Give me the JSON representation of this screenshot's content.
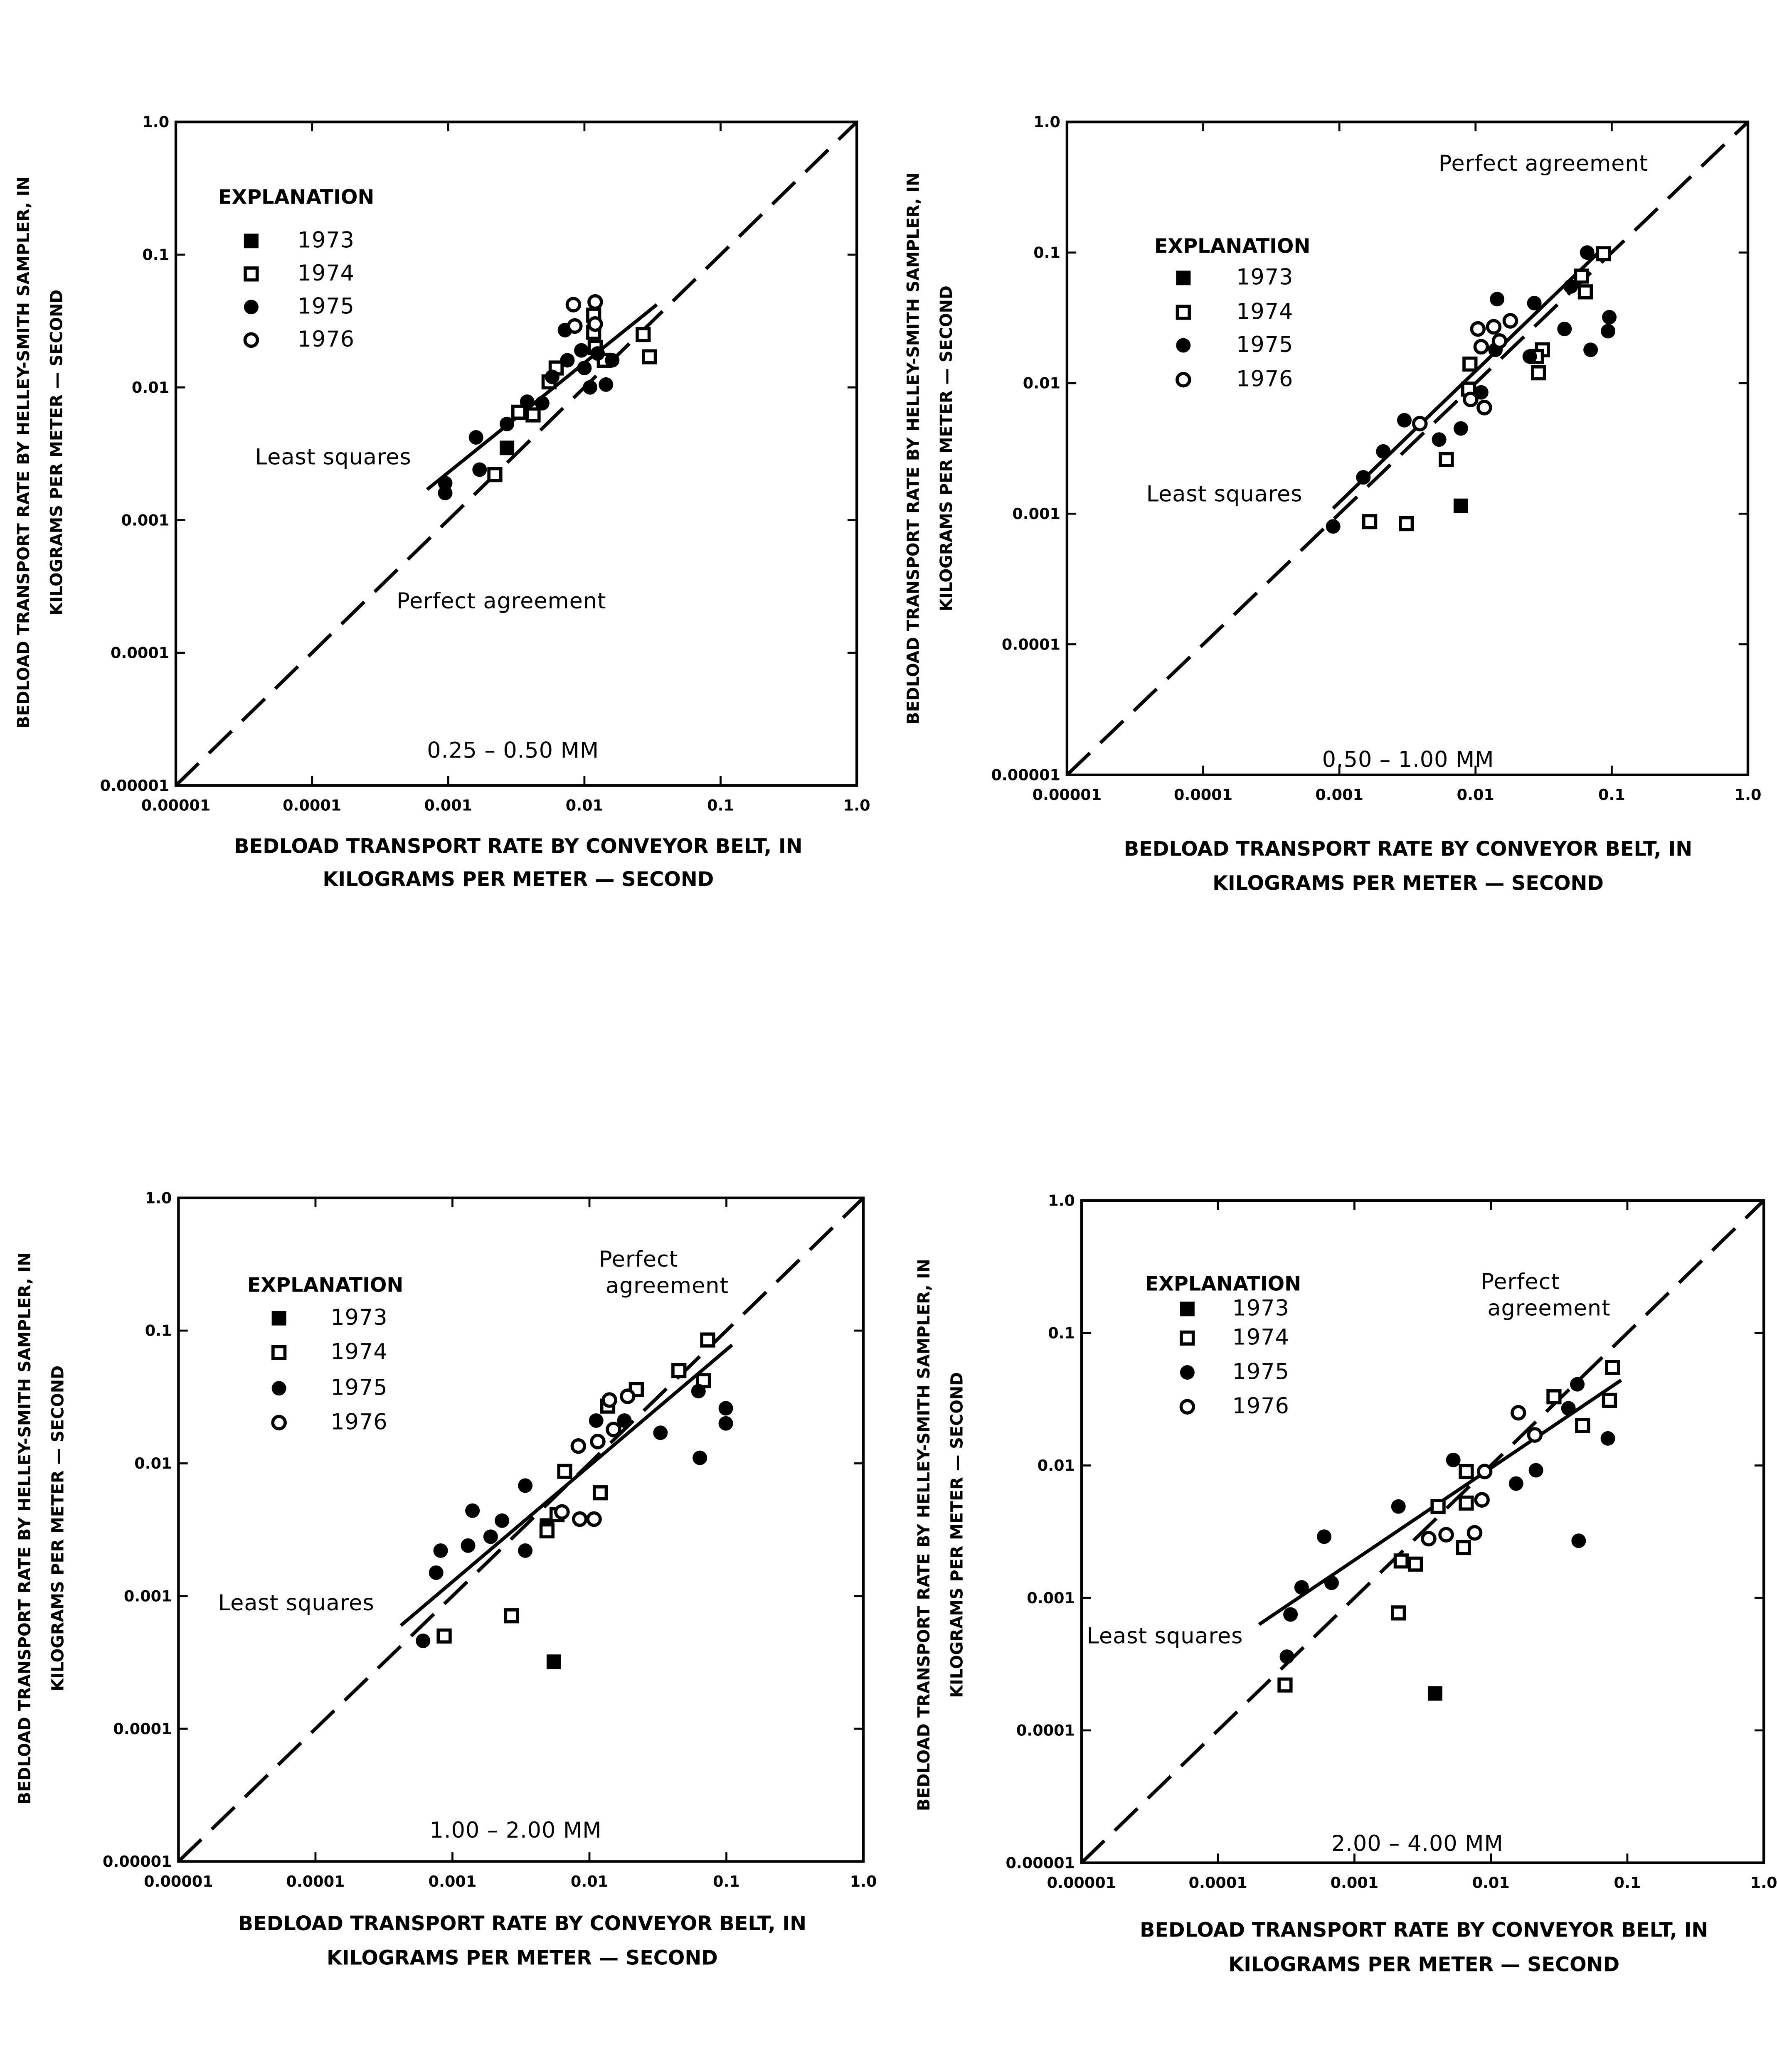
{
  "chart_data": [
    {
      "type": "scatter",
      "panel_label": "0.25 – 0.50 MM",
      "xlabel": [
        "BEDLOAD TRANSPORT RATE BY CONVEYOR BELT, IN",
        "KILOGRAMS PER METER — SECOND"
      ],
      "ylabel": [
        "BEDLOAD TRANSPORT RATE BY HELLEY-SMITH SAMPLER, IN",
        "KILOGRAMS PER METER — SECOND"
      ],
      "xscale": "log",
      "yscale": "log",
      "xlim": [
        1e-05,
        1.0
      ],
      "ylim": [
        1e-05,
        1.0
      ],
      "xticks": [
        "0.00001",
        "0.0001",
        "0.001",
        "0.01",
        "0.1",
        "1.0"
      ],
      "yticks": [
        "0.00001",
        "0.0001",
        "0.001",
        "0.01",
        "0.1",
        "1.0"
      ],
      "legend": {
        "title": "EXPLANATION",
        "placement": "top-left"
      },
      "series": [
        {
          "name": "1973",
          "marker": "filled-square",
          "points": [
            [
              0.0027,
              0.0035
            ]
          ]
        },
        {
          "name": "1974",
          "marker": "open-square",
          "points": [
            [
              0.0022,
              0.0022
            ],
            [
              0.0033,
              0.0065
            ],
            [
              0.0042,
              0.0062
            ],
            [
              0.0055,
              0.011
            ],
            [
              0.0062,
              0.014
            ],
            [
              0.0117,
              0.035
            ],
            [
              0.0117,
              0.026
            ],
            [
              0.012,
              0.02
            ],
            [
              0.027,
              0.025
            ],
            [
              0.03,
              0.017
            ],
            [
              0.014,
              0.016
            ]
          ]
        },
        {
          "name": "1975",
          "marker": "filled-circle",
          "points": [
            [
              0.00095,
              0.0016
            ],
            [
              0.00095,
              0.0019
            ],
            [
              0.0016,
              0.0042
            ],
            [
              0.0017,
              0.0024
            ],
            [
              0.0027,
              0.0053
            ],
            [
              0.0038,
              0.0078
            ],
            [
              0.0049,
              0.0076
            ],
            [
              0.0058,
              0.012
            ],
            [
              0.0072,
              0.027
            ],
            [
              0.0075,
              0.016
            ],
            [
              0.0095,
              0.019
            ],
            [
              0.01,
              0.014
            ],
            [
              0.011,
              0.01
            ],
            [
              0.0125,
              0.018
            ],
            [
              0.0144,
              0.0105
            ],
            [
              0.016,
              0.016
            ]
          ]
        },
        {
          "name": "1976",
          "marker": "open-circle",
          "points": [
            [
              0.0083,
              0.042
            ],
            [
              0.012,
              0.044
            ],
            [
              0.0085,
              0.029
            ],
            [
              0.012,
              0.03
            ]
          ]
        }
      ],
      "least_squares": {
        "label": "Least squares",
        "from": [
          0.0007,
          0.0017
        ],
        "to": [
          0.034,
          0.042
        ]
      },
      "perfect_agreement": {
        "label": [
          "Perfect agreement"
        ],
        "from": [
          1e-05,
          1e-05
        ],
        "to": [
          1.0,
          1.0
        ]
      }
    },
    {
      "type": "scatter",
      "panel_label": "0.50 – 1.00 MM",
      "xlabel": [
        "BEDLOAD TRANSPORT RATE BY CONVEYOR BELT, IN",
        "KILOGRAMS PER METER — SECOND"
      ],
      "ylabel": [
        "BEDLOAD TRANSPORT RATE BY HELLEY-SMITH SAMPLER, IN",
        "KILOGRAMS PER METER — SECOND"
      ],
      "xscale": "log",
      "yscale": "log",
      "xlim": [
        1e-05,
        1.0
      ],
      "ylim": [
        1e-05,
        1.0
      ],
      "xticks": [
        "0.00001",
        "0.0001",
        "0.001",
        "0.01",
        "0.1",
        "1.0"
      ],
      "yticks": [
        "0.00001",
        "0.0001",
        "0.001",
        "0.01",
        "0.1",
        "1.0"
      ],
      "legend": {
        "title": "EXPLANATION",
        "placement": "top-left"
      },
      "series": [
        {
          "name": "1973",
          "marker": "filled-square",
          "points": [
            [
              0.0078,
              0.00115
            ]
          ]
        },
        {
          "name": "1974",
          "marker": "open-square",
          "points": [
            [
              0.00167,
              0.00087
            ],
            [
              0.0031,
              0.00084
            ],
            [
              0.0061,
              0.0026
            ],
            [
              0.0091,
              0.014
            ],
            [
              0.0089,
              0.009
            ],
            [
              0.029,
              0.012
            ],
            [
              0.031,
              0.018
            ],
            [
              0.064,
              0.05
            ],
            [
              0.087,
              0.098
            ],
            [
              0.06,
              0.066
            ],
            [
              0.028,
              0.016
            ]
          ]
        },
        {
          "name": "1975",
          "marker": "filled-circle",
          "points": [
            [
              0.0009,
              0.0008
            ],
            [
              0.0015,
              0.0019
            ],
            [
              0.0021,
              0.003
            ],
            [
              0.003,
              0.0052
            ],
            [
              0.0054,
              0.0037
            ],
            [
              0.0078,
              0.0045
            ],
            [
              0.0144,
              0.044
            ],
            [
              0.027,
              0.041
            ],
            [
              0.045,
              0.026
            ],
            [
              0.07,
              0.018
            ],
            [
              0.096,
              0.032
            ],
            [
              0.066,
              0.1
            ],
            [
              0.094,
              0.025
            ],
            [
              0.014,
              0.018
            ],
            [
              0.011,
              0.0085
            ],
            [
              0.05,
              0.055
            ],
            [
              0.025,
              0.016
            ]
          ]
        },
        {
          "name": "1976",
          "marker": "open-circle",
          "points": [
            [
              0.0039,
              0.0049
            ],
            [
              0.0092,
              0.0075
            ],
            [
              0.0116,
              0.0065
            ],
            [
              0.0104,
              0.026
            ],
            [
              0.0136,
              0.027
            ],
            [
              0.018,
              0.03
            ],
            [
              0.011,
              0.019
            ],
            [
              0.015,
              0.021
            ]
          ]
        }
      ],
      "least_squares": {
        "label": "Least squares",
        "from": [
          0.0009,
          0.0011
        ],
        "to": [
          0.08,
          0.1
        ]
      },
      "perfect_agreement": {
        "label": [
          "Perfect agreement"
        ],
        "from": [
          1e-05,
          1e-05
        ],
        "to": [
          1.0,
          1.0
        ]
      }
    },
    {
      "type": "scatter",
      "panel_label": "1.00 – 2.00 MM",
      "xlabel": [
        "BEDLOAD TRANSPORT RATE BY CONVEYOR BELT, IN",
        "KILOGRAMS PER METER — SECOND"
      ],
      "ylabel": [
        "BEDLOAD TRANSPORT RATE BY HELLEY-SMITH SAMPLER, IN",
        "KILOGRAMS PER METER — SECOND"
      ],
      "xscale": "log",
      "yscale": "log",
      "xlim": [
        1e-05,
        1.0
      ],
      "ylim": [
        1e-05,
        1.0
      ],
      "xticks": [
        "0.00001",
        "0.0001",
        "0.001",
        "0.01",
        "0.1",
        "1.0"
      ],
      "yticks": [
        "0.00001",
        "0.0001",
        "0.001",
        "0.01",
        "0.1",
        "1.0"
      ],
      "legend": {
        "title": "EXPLANATION",
        "placement": "top-left"
      },
      "series": [
        {
          "name": "1973",
          "marker": "filled-square",
          "points": [
            [
              0.0055,
              0.00032
            ],
            [
              0.0049,
              0.0034
            ]
          ]
        },
        {
          "name": "1974",
          "marker": "open-square",
          "points": [
            [
              0.00087,
              0.0005
            ],
            [
              0.0027,
              0.00071
            ],
            [
              0.0049,
              0.0031
            ],
            [
              0.0066,
              0.0087
            ],
            [
              0.012,
              0.006
            ],
            [
              0.0136,
              0.027
            ],
            [
              0.022,
              0.036
            ],
            [
              0.045,
              0.05
            ],
            [
              0.068,
              0.042
            ],
            [
              0.073,
              0.085
            ],
            [
              0.0058,
              0.0041
            ]
          ]
        },
        {
          "name": "1975",
          "marker": "filled-circle",
          "points": [
            [
              0.00061,
              0.00046
            ],
            [
              0.00076,
              0.0015
            ],
            [
              0.00082,
              0.0022
            ],
            [
              0.0014,
              0.0044
            ],
            [
              0.0013,
              0.0024
            ],
            [
              0.0023,
              0.0037
            ],
            [
              0.0019,
              0.0028
            ],
            [
              0.0034,
              0.0022
            ],
            [
              0.0034,
              0.0068
            ],
            [
              0.0112,
              0.021
            ],
            [
              0.018,
              0.021
            ],
            [
              0.033,
              0.017
            ],
            [
              0.064,
              0.011
            ],
            [
              0.099,
              0.026
            ],
            [
              0.099,
              0.02
            ],
            [
              0.0625,
              0.035
            ]
          ]
        },
        {
          "name": "1976",
          "marker": "open-circle",
          "points": [
            [
              0.0083,
              0.0135
            ],
            [
              0.0085,
              0.0038
            ],
            [
              0.0063,
              0.0043
            ],
            [
              0.014,
              0.03
            ],
            [
              0.019,
              0.032
            ],
            [
              0.015,
              0.018
            ],
            [
              0.0115,
              0.0146
            ],
            [
              0.0108,
              0.0038
            ]
          ]
        }
      ],
      "least_squares": {
        "label": "Least squares",
        "from": [
          0.00042,
          0.0006
        ],
        "to": [
          0.11,
          0.078
        ]
      },
      "perfect_agreement": {
        "label": [
          "Perfect",
          "agreement"
        ],
        "from": [
          1e-05,
          1e-05
        ],
        "to": [
          1.0,
          1.0
        ]
      }
    },
    {
      "type": "scatter",
      "panel_label": "2.00 – 4.00 MM",
      "xlabel": [
        "BEDLOAD TRANSPORT RATE BY CONVEYOR BELT, IN",
        "KILOGRAMS PER METER — SECOND"
      ],
      "ylabel": [
        "BEDLOAD TRANSPORT RATE BY HELLEY-SMITH SAMPLER, IN",
        "KILOGRAMS PER METER — SECOND"
      ],
      "xscale": "log",
      "yscale": "log",
      "xlim": [
        1e-05,
        1.0
      ],
      "ylim": [
        1e-05,
        1.0
      ],
      "xticks": [
        "0.00001",
        "0.0001",
        "0.001",
        "0.01",
        "0.1",
        "1.0"
      ],
      "yticks": [
        "0.00001",
        "0.0001",
        "0.001",
        "0.01",
        "0.1",
        "1.0"
      ],
      "legend": {
        "title": "EXPLANATION",
        "placement": "top-left"
      },
      "series": [
        {
          "name": "1973",
          "marker": "filled-square",
          "points": [
            [
              0.0039,
              0.00019
            ]
          ]
        },
        {
          "name": "1974",
          "marker": "open-square",
          "points": [
            [
              0.00031,
              0.00022
            ],
            [
              0.0021,
              0.00077
            ],
            [
              0.0028,
              0.0018
            ],
            [
              0.0041,
              0.0049
            ],
            [
              0.0063,
              0.0024
            ],
            [
              0.0066,
              0.0052
            ],
            [
              0.029,
              0.033
            ],
            [
              0.047,
              0.02
            ],
            [
              0.078,
              0.055
            ],
            [
              0.074,
              0.031
            ],
            [
              0.0066,
              0.009
            ],
            [
              0.0022,
              0.0019
            ]
          ]
        },
        {
          "name": "1975",
          "marker": "filled-circle",
          "points": [
            [
              0.00034,
              0.00075
            ],
            [
              0.00041,
              0.0012
            ],
            [
              0.0006,
              0.0029
            ],
            [
              0.00068,
              0.0013
            ],
            [
              0.0021,
              0.0049
            ],
            [
              0.0053,
              0.011
            ],
            [
              0.0153,
              0.0073
            ],
            [
              0.0214,
              0.0092
            ],
            [
              0.044,
              0.0027
            ],
            [
              0.072,
              0.016
            ],
            [
              0.043,
              0.041
            ],
            [
              0.037,
              0.027
            ],
            [
              0.00032,
              0.00036
            ]
          ]
        },
        {
          "name": "1976",
          "marker": "open-circle",
          "points": [
            [
              0.0035,
              0.0028
            ],
            [
              0.0047,
              0.003
            ],
            [
              0.0086,
              0.0055
            ],
            [
              0.0159,
              0.025
            ],
            [
              0.021,
              0.017
            ],
            [
              0.0076,
              0.0031
            ],
            [
              0.009,
              0.009
            ]
          ]
        }
      ],
      "least_squares": {
        "label": "Least squares",
        "from": [
          0.0002,
          0.00063
        ],
        "to": [
          0.09,
          0.044
        ]
      },
      "perfect_agreement": {
        "label": [
          "Perfect",
          "agreement"
        ],
        "from": [
          1e-05,
          1e-05
        ],
        "to": [
          1.0,
          1.0
        ]
      }
    }
  ]
}
